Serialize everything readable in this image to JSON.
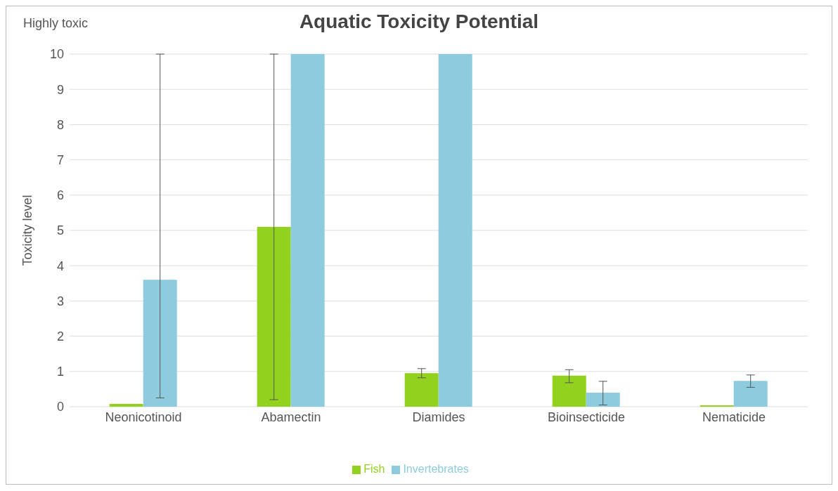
{
  "chart_data": {
    "type": "bar",
    "title": "Aquatic Toxicity Potential",
    "ylabel": "Toxicity level",
    "annotations": [
      "Highly toxic"
    ],
    "categories": [
      "Neonicotinoid",
      "Abamectin",
      "Diamides",
      "Bioinsecticide",
      "Nematicide"
    ],
    "series": [
      {
        "name": "Fish",
        "color": "#92d11e",
        "values": [
          0.08,
          5.1,
          0.95,
          0.88,
          0.04
        ],
        "errors": [
          null,
          [
            0.2,
            10
          ],
          [
            0.82,
            1.08
          ],
          [
            0.68,
            1.05
          ],
          null
        ]
      },
      {
        "name": "Invertebrates",
        "color": "#8ecbde",
        "values": [
          3.6,
          10,
          10,
          0.4,
          0.73
        ],
        "errors": [
          [
            0.25,
            10
          ],
          null,
          null,
          [
            0.05,
            0.72
          ],
          [
            0.55,
            0.9
          ]
        ]
      }
    ],
    "ylim": [
      0,
      10
    ],
    "yticks": [
      0,
      1,
      2,
      3,
      4,
      5,
      6,
      7,
      8,
      9,
      10
    ],
    "grid": "y",
    "legend": "bottom"
  }
}
